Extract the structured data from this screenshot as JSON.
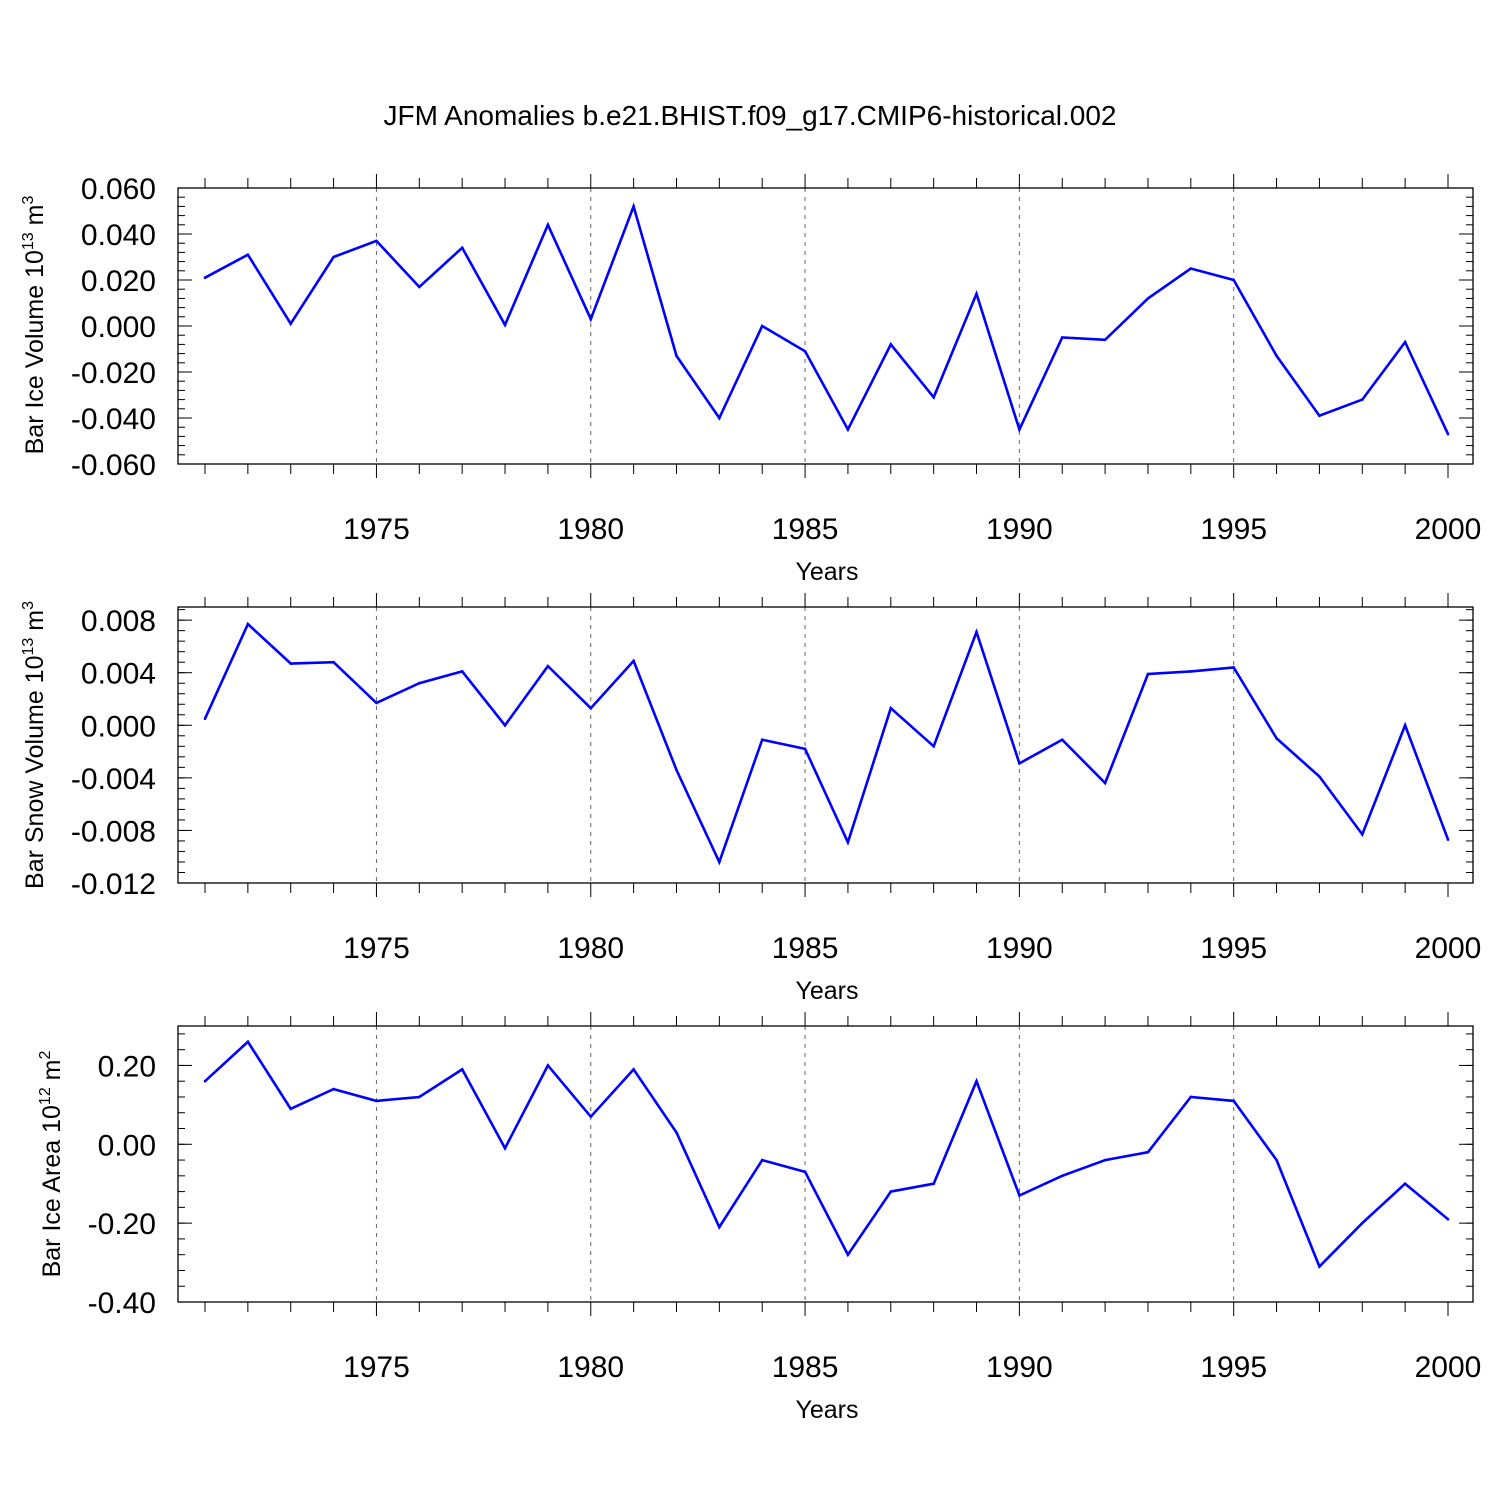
{
  "title": "JFM Anomalies b.e21.BHIST.f09_g17.CMIP6-historical.002",
  "colors": {
    "line": "#0000ff",
    "axis": "#000000",
    "grid": "#666666"
  },
  "chart_data": [
    {
      "type": "line",
      "ylabel": {
        "main": "Bar Ice Volume 10",
        "exp": "13",
        "unit": " m",
        "unit_exp": "3"
      },
      "xlabel": "Years",
      "xlim": [
        1971,
        2000
      ],
      "ylim": [
        -0.06,
        0.06
      ],
      "x_ticks": [
        "1975",
        "1980",
        "1985",
        "1990",
        "1995",
        "2000"
      ],
      "y_ticks": [
        "0.060",
        "0.040",
        "0.020",
        "0.000",
        "-0.020",
        "-0.040",
        "-0.060"
      ],
      "grid": "vertical dashed at major x ticks",
      "series": [
        {
          "x": [
            1971,
            1972,
            1973,
            1974,
            1975,
            1976,
            1977,
            1978,
            1979,
            1980,
            1981,
            1982,
            1983,
            1984,
            1985,
            1986,
            1987,
            1988,
            1989,
            1990,
            1991,
            1992,
            1993,
            1994,
            1995,
            1996,
            1997,
            1998,
            1999,
            2000
          ],
          "values": [
            0.021,
            0.031,
            0.001,
            0.03,
            0.037,
            0.017,
            0.034,
            0.0005,
            0.044,
            0.003,
            0.052,
            -0.013,
            -0.04,
            0.0,
            -0.011,
            -0.045,
            -0.008,
            -0.031,
            0.014,
            -0.045,
            -0.005,
            -0.006,
            0.012,
            0.025,
            0.02,
            -0.013,
            -0.039,
            -0.032,
            -0.007,
            -0.047
          ]
        }
      ]
    },
    {
      "type": "line",
      "ylabel": {
        "main": "Bar Snow Volume 10",
        "exp": "13",
        "unit": " m",
        "unit_exp": "3"
      },
      "xlabel": "Years",
      "xlim": [
        1971,
        2000
      ],
      "ylim": [
        -0.012,
        0.009
      ],
      "x_ticks": [
        "1975",
        "1980",
        "1985",
        "1990",
        "1995",
        "2000"
      ],
      "y_ticks": [
        "0.008",
        "0.004",
        "0.000",
        "-0.004",
        "-0.008",
        "-0.012"
      ],
      "grid": "vertical dashed at major x ticks",
      "series": [
        {
          "x": [
            1971,
            1972,
            1973,
            1974,
            1975,
            1976,
            1977,
            1978,
            1979,
            1980,
            1981,
            1982,
            1983,
            1984,
            1985,
            1986,
            1987,
            1988,
            1989,
            1990,
            1991,
            1992,
            1993,
            1994,
            1995,
            1996,
            1997,
            1998,
            1999,
            2000
          ],
          "values": [
            0.0005,
            0.0077,
            0.0047,
            0.0048,
            0.0017,
            0.0032,
            0.0041,
            0.0,
            0.0045,
            0.0013,
            0.0049,
            -0.0034,
            -0.0104,
            -0.0011,
            -0.0018,
            -0.0089,
            0.0013,
            -0.0016,
            0.0071,
            -0.0029,
            -0.0011,
            -0.0044,
            0.0039,
            0.0041,
            0.0044,
            -0.001,
            -0.0039,
            -0.0083,
            0.0,
            -0.0087
          ]
        }
      ]
    },
    {
      "type": "line",
      "ylabel": {
        "main": "Bar Ice Area 10",
        "exp": "12",
        "unit": " m",
        "unit_exp": "2"
      },
      "xlabel": "Years",
      "xlim": [
        1971,
        2000
      ],
      "ylim": [
        -0.4,
        0.3
      ],
      "x_ticks": [
        "1975",
        "1980",
        "1985",
        "1990",
        "1995",
        "2000"
      ],
      "y_ticks": [
        "0.20",
        "0.00",
        "-0.20",
        "-0.40"
      ],
      "grid": "vertical dashed at major x ticks",
      "series": [
        {
          "x": [
            1971,
            1972,
            1973,
            1974,
            1975,
            1976,
            1977,
            1978,
            1979,
            1980,
            1981,
            1982,
            1983,
            1984,
            1985,
            1986,
            1987,
            1988,
            1989,
            1990,
            1991,
            1992,
            1993,
            1994,
            1995,
            1996,
            1997,
            1998,
            1999,
            2000
          ],
          "values": [
            0.16,
            0.26,
            0.09,
            0.14,
            0.11,
            0.12,
            0.19,
            -0.01,
            0.2,
            0.07,
            0.19,
            0.03,
            -0.21,
            -0.04,
            -0.07,
            -0.28,
            -0.12,
            -0.1,
            0.16,
            -0.13,
            -0.08,
            -0.04,
            -0.02,
            0.12,
            0.11,
            -0.04,
            -0.31,
            -0.2,
            -0.1,
            -0.19
          ]
        }
      ]
    }
  ]
}
